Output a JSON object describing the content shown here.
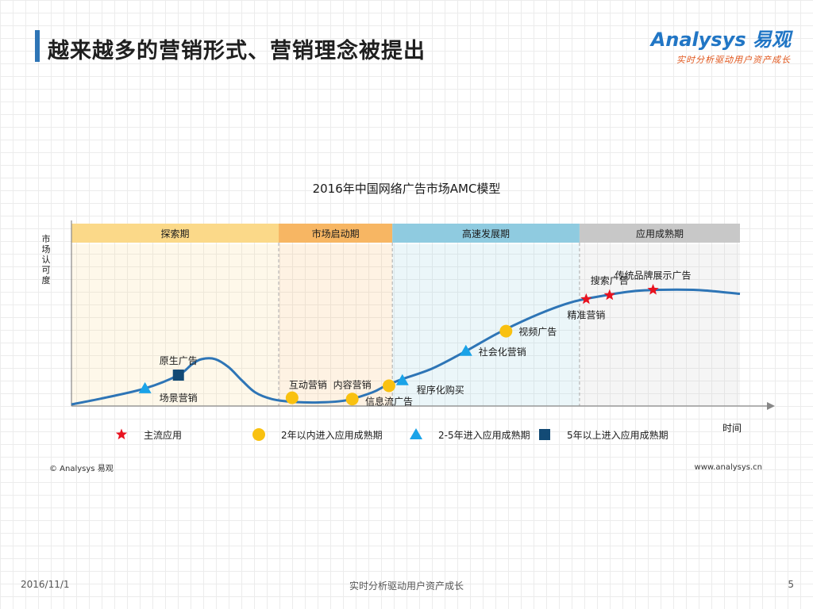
{
  "header": {
    "title": "越来越多的营销形式、营销理念被提出",
    "logo_text": "Analysys 易观",
    "logo_tagline": "实时分析驱动用户资产成长"
  },
  "chart_data": {
    "type": "line",
    "title": "2016年中国网络广告市场AMC模型",
    "xlabel": "时间",
    "ylabel": "市场认可度",
    "ylim": [
      0,
      100
    ],
    "grid": false,
    "phases": [
      {
        "label": "探索期",
        "start": 0,
        "end": 31,
        "color": "#fbd989"
      },
      {
        "label": "市场启动期",
        "start": 31,
        "end": 48,
        "color": "#f7b663"
      },
      {
        "label": "高速发展期",
        "start": 48,
        "end": 76,
        "color": "#8fcbe0"
      },
      {
        "label": "应用成熟期",
        "start": 76,
        "end": 100,
        "color": "#c8c8c8"
      }
    ],
    "curve": {
      "x": [
        0,
        5,
        11,
        16,
        18,
        19.5,
        21.5,
        23.5,
        25.5,
        27.5,
        30,
        33,
        37,
        41,
        45,
        47,
        49.5,
        54,
        59,
        64,
        70,
        75,
        80,
        84,
        88,
        93,
        96,
        100
      ],
      "y": [
        0,
        5,
        12,
        22,
        30,
        34,
        34,
        28,
        18,
        9,
        4,
        2,
        1.5,
        3,
        9,
        14,
        19,
        27,
        40,
        54,
        68,
        77,
        82,
        85,
        86,
        86,
        85,
        83
      ]
    },
    "legend": [
      {
        "symbol": "star",
        "color": "#e8121f",
        "label": "主流应用"
      },
      {
        "symbol": "circle",
        "color": "#f9c110",
        "label": "2年以内进入应用成熟期"
      },
      {
        "symbol": "triangle",
        "color": "#1aa3e8",
        "label": "2-5年进入应用成熟期"
      },
      {
        "symbol": "square",
        "color": "#124a75",
        "label": "5年以上进入应用成熟期"
      }
    ],
    "points": [
      {
        "label": "场景营销",
        "x": 11,
        "y": 12,
        "symbol": "triangle",
        "label_pos": "below-right"
      },
      {
        "label": "原生广告",
        "x": 16,
        "y": 22,
        "symbol": "square",
        "label_pos": "above"
      },
      {
        "label": "互动营销",
        "x": 33,
        "y": 5,
        "symbol": "circle",
        "label_pos": "above-right"
      },
      {
        "label": "内容营销",
        "x": 42,
        "y": 4,
        "symbol": "circle",
        "label_pos": "above"
      },
      {
        "label": "信息流广告",
        "x": 47.5,
        "y": 14,
        "symbol": "circle",
        "label_pos": "below"
      },
      {
        "label": "程序化购买",
        "x": 49.5,
        "y": 18,
        "symbol": "triangle",
        "label_pos": "below-right"
      },
      {
        "label": "社会化营销",
        "x": 59,
        "y": 40,
        "symbol": "triangle",
        "label_pos": "right"
      },
      {
        "label": "视频广告",
        "x": 65,
        "y": 55,
        "symbol": "circle",
        "label_pos": "right"
      },
      {
        "label": "精准营销",
        "x": 77,
        "y": 79,
        "symbol": "star",
        "label_pos": "below"
      },
      {
        "label": "搜索广告",
        "x": 80.5,
        "y": 82,
        "symbol": "star",
        "label_pos": "above"
      },
      {
        "label": "传统品牌展示广告",
        "x": 87,
        "y": 86,
        "symbol": "star",
        "label_pos": "above"
      }
    ]
  },
  "footer": {
    "copyright": "© Analysys 易观",
    "website": "www.analysys.cn",
    "date": "2016/11/1",
    "slogan": "实时分析驱动用户资产成长",
    "page_number": "5"
  }
}
